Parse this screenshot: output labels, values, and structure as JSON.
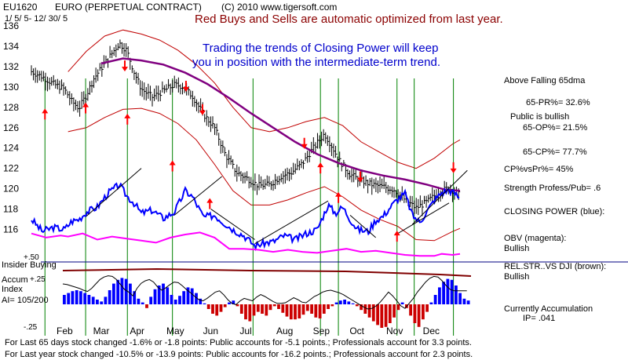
{
  "header": {
    "symbol": "EU1620",
    "name": "EURO  (PERPETUAL CONTRACT)",
    "copyright": "(C) 2010 www.tigersoft.com",
    "date_range": "1/ 5/ 5- 12/ 30/ 5"
  },
  "annotations": {
    "red_note": "Red Buys and Sells are automatic optimized from last year.",
    "blue_note_line1": "Trading the trends of Closing Power will keep",
    "blue_note_line2": "you in position with the intermediate-term trend."
  },
  "side_panel": {
    "above_ma": "Above Falling 65dma",
    "pr": "65-PR%= 32.6%",
    "public": "Public is bullish",
    "op": "65-OP%= 21.5%",
    "cp": "65-CP%= 77.7%",
    "cpvspr": "CP%vsPr%=  45%",
    "strength": "Strength Profess/Pub= .6",
    "closing_power": "CLOSING POWER (blue):",
    "obv": "OBV (magenta):",
    "obv_state": "Bullish",
    "relstr": "REL.STR..VS DJI (brown):",
    "relstr_state": "Bullish",
    "accum": "Currently Accumulation",
    "ip": "IP=  .041"
  },
  "footer": {
    "line1": "For Last 65 days stock changed -1.6% or -1.8 points:  Public accounts for -5.1 points.;  Professionals account for   3.3 points.",
    "line2": "For Last year stock changed -10.5% or -13.9 points:  Public accounts for -16.2 points.;  Professionals account for   2.3 points."
  },
  "lower_panel": {
    "insider": "Insider Buying",
    "plus50": "+.50",
    "accum": "Accum",
    "index": "Index",
    "ai": "AI= 105/200",
    "plus25": "+.25",
    "minus25": "-.25"
  },
  "colors": {
    "price_bars": "#000000",
    "bands": "#c00000",
    "ma65": "#800080",
    "closing_power": "#0000ff",
    "obv": "#ff00ff",
    "insider_line": "#000080",
    "signals": "#008000",
    "accum_pos": "#0000ff",
    "accum_neg": "#cc0000",
    "red_note": "#8b0000",
    "blue_note": "#0000cc"
  },
  "chart_data": {
    "type": "line",
    "x_ticks": [
      "Feb",
      "Mar",
      "Apr",
      "May",
      "Jun",
      "Jul",
      "Aug",
      "Sep",
      "Oct",
      "Nov",
      "Dec"
    ],
    "y_ticks": [
      116,
      118,
      120,
      122,
      124,
      126,
      128,
      130,
      132,
      134,
      136
    ],
    "ylim": [
      114.5,
      137
    ],
    "x_range": [
      0,
      12
    ],
    "price": [
      [
        0.0,
        131.5
      ],
      [
        0.3,
        131.0
      ],
      [
        0.6,
        130.3
      ],
      [
        0.9,
        129.8
      ],
      [
        1.1,
        128.6
      ],
      [
        1.3,
        127.9
      ],
      [
        1.5,
        129.2
      ],
      [
        1.7,
        130.8
      ],
      [
        2.0,
        132.3
      ],
      [
        2.2,
        133.3
      ],
      [
        2.4,
        134.3
      ],
      [
        2.6,
        133.6
      ],
      [
        2.8,
        131.5
      ],
      [
        3.0,
        129.8
      ],
      [
        3.3,
        129.0
      ],
      [
        3.6,
        129.6
      ],
      [
        3.9,
        130.2
      ],
      [
        4.1,
        130.1
      ],
      [
        4.4,
        129.1
      ],
      [
        4.7,
        127.3
      ],
      [
        5.0,
        126.0
      ],
      [
        5.3,
        123.3
      ],
      [
        5.6,
        121.6
      ],
      [
        5.9,
        121.0
      ],
      [
        6.2,
        120.3
      ],
      [
        6.5,
        120.4
      ],
      [
        6.8,
        121.2
      ],
      [
        7.1,
        121.6
      ],
      [
        7.4,
        122.5
      ],
      [
        7.7,
        124.0
      ],
      [
        8.0,
        125.4
      ],
      [
        8.2,
        124.2
      ],
      [
        8.4,
        122.8
      ],
      [
        8.7,
        121.4
      ],
      [
        9.0,
        120.8
      ],
      [
        9.3,
        120.4
      ],
      [
        9.6,
        120.2
      ],
      [
        9.9,
        119.9
      ],
      [
        10.2,
        118.9
      ],
      [
        10.5,
        118.1
      ],
      [
        10.8,
        118.7
      ],
      [
        11.1,
        119.6
      ],
      [
        11.4,
        120.1
      ],
      [
        11.7,
        119.3
      ]
    ],
    "ma65": [
      [
        1.9,
        132.3
      ],
      [
        2.5,
        132.8
      ],
      [
        3.0,
        132.6
      ],
      [
        3.6,
        132.2
      ],
      [
        4.2,
        131.4
      ],
      [
        4.8,
        130.3
      ],
      [
        5.4,
        128.9
      ],
      [
        6.0,
        127.4
      ],
      [
        6.6,
        126.0
      ],
      [
        7.2,
        124.6
      ],
      [
        7.8,
        123.4
      ],
      [
        8.4,
        122.5
      ],
      [
        9.0,
        121.8
      ],
      [
        9.6,
        121.3
      ],
      [
        10.2,
        120.9
      ],
      [
        10.8,
        120.4
      ],
      [
        11.3,
        119.9
      ],
      [
        11.7,
        119.8
      ]
    ],
    "band_upper": [
      [
        1.0,
        131.5
      ],
      [
        1.5,
        133.5
      ],
      [
        2.0,
        135.0
      ],
      [
        2.5,
        135.6
      ],
      [
        3.0,
        135.2
      ],
      [
        3.5,
        134.6
      ],
      [
        4.0,
        133.6
      ],
      [
        4.5,
        132.2
      ],
      [
        5.0,
        130.4
      ],
      [
        5.5,
        128.0
      ],
      [
        6.0,
        126.0
      ],
      [
        6.5,
        125.6
      ],
      [
        7.0,
        126.0
      ],
      [
        7.5,
        126.6
      ],
      [
        8.0,
        127.0
      ],
      [
        8.5,
        126.2
      ],
      [
        9.0,
        124.6
      ],
      [
        9.5,
        123.6
      ],
      [
        10.0,
        122.6
      ],
      [
        10.5,
        122.0
      ],
      [
        11.0,
        123.0
      ],
      [
        11.5,
        124.4
      ],
      [
        11.7,
        124.8
      ]
    ],
    "band_lower": [
      [
        1.0,
        125.6
      ],
      [
        1.5,
        126.0
      ],
      [
        2.0,
        127.0
      ],
      [
        2.5,
        127.8
      ],
      [
        3.0,
        127.9
      ],
      [
        3.5,
        127.4
      ],
      [
        4.0,
        126.4
      ],
      [
        4.5,
        124.8
      ],
      [
        5.0,
        122.4
      ],
      [
        5.5,
        119.8
      ],
      [
        6.0,
        118.4
      ],
      [
        6.5,
        118.4
      ],
      [
        7.0,
        118.9
      ],
      [
        7.5,
        119.6
      ],
      [
        8.0,
        120.2
      ],
      [
        8.5,
        119.2
      ],
      [
        9.0,
        117.9
      ],
      [
        9.5,
        117.0
      ],
      [
        10.0,
        116.3
      ],
      [
        10.5,
        115.0
      ],
      [
        11.0,
        114.9
      ],
      [
        11.5,
        115.8
      ],
      [
        11.7,
        116.1
      ]
    ],
    "closing_power": [
      [
        0.0,
        117.0
      ],
      [
        0.3,
        115.8
      ],
      [
        0.6,
        116.2
      ],
      [
        0.9,
        116.0
      ],
      [
        1.1,
        116.8
      ],
      [
        1.3,
        117.0
      ],
      [
        1.5,
        117.7
      ],
      [
        1.8,
        118.2
      ],
      [
        2.1,
        119.6
      ],
      [
        2.4,
        120.4
      ],
      [
        2.6,
        119.3
      ],
      [
        2.8,
        118.6
      ],
      [
        3.0,
        117.6
      ],
      [
        3.3,
        117.9
      ],
      [
        3.6,
        117.1
      ],
      [
        3.9,
        117.7
      ],
      [
        4.2,
        119.8
      ],
      [
        4.4,
        119.2
      ],
      [
        4.7,
        117.2
      ],
      [
        5.0,
        117.4
      ],
      [
        5.2,
        116.8
      ],
      [
        5.5,
        116.0
      ],
      [
        5.8,
        115.4
      ],
      [
        6.1,
        114.4
      ],
      [
        6.4,
        114.7
      ],
      [
        6.6,
        114.8
      ],
      [
        6.9,
        115.4
      ],
      [
        7.2,
        115.0
      ],
      [
        7.5,
        115.6
      ],
      [
        7.8,
        116.0
      ],
      [
        8.1,
        118.4
      ],
      [
        8.3,
        117.6
      ],
      [
        8.5,
        118.2
      ],
      [
        8.7,
        117.0
      ],
      [
        8.9,
        116.0
      ],
      [
        9.2,
        115.8
      ],
      [
        9.4,
        116.9
      ],
      [
        9.6,
        117.3
      ],
      [
        9.8,
        118.2
      ],
      [
        10.0,
        119.0
      ],
      [
        10.2,
        119.5
      ],
      [
        10.4,
        117.4
      ],
      [
        10.6,
        116.7
      ],
      [
        10.8,
        117.8
      ],
      [
        11.0,
        118.9
      ],
      [
        11.2,
        119.6
      ],
      [
        11.4,
        119.9
      ],
      [
        11.6,
        119.4
      ],
      [
        11.7,
        119.0
      ]
    ],
    "obv": [
      [
        0.0,
        115.6
      ],
      [
        0.4,
        115.2
      ],
      [
        0.8,
        115.4
      ],
      [
        1.0,
        115.3
      ],
      [
        1.4,
        115.6
      ],
      [
        1.8,
        115.0
      ],
      [
        2.2,
        115.3
      ],
      [
        2.6,
        115.1
      ],
      [
        3.0,
        114.9
      ],
      [
        3.4,
        114.7
      ],
      [
        3.8,
        115.2
      ],
      [
        4.2,
        115.5
      ],
      [
        4.6,
        115.7
      ],
      [
        5.0,
        115.2
      ],
      [
        5.4,
        114.1
      ],
      [
        5.8,
        114.1
      ],
      [
        6.2,
        114.0
      ],
      [
        6.6,
        113.8
      ],
      [
        7.0,
        114.0
      ],
      [
        7.4,
        113.8
      ],
      [
        7.8,
        113.7
      ],
      [
        8.2,
        113.9
      ],
      [
        8.6,
        114.1
      ],
      [
        9.0,
        113.8
      ],
      [
        9.4,
        113.9
      ],
      [
        9.8,
        113.7
      ],
      [
        10.2,
        113.5
      ],
      [
        10.6,
        113.4
      ],
      [
        11.0,
        113.4
      ],
      [
        11.2,
        113.6
      ],
      [
        11.5,
        113.5
      ],
      [
        11.7,
        113.6
      ]
    ],
    "signal_lines_x": [
      0.37,
      1.48,
      2.62,
      3.85,
      6.05,
      7.89,
      8.38,
      9.98,
      10.45,
      11.52
    ],
    "buy_signals": [
      {
        "x": 0.37,
        "y": 126.8
      },
      {
        "x": 1.48,
        "y": 127.4
      },
      {
        "x": 2.62,
        "y": 126.3
      },
      {
        "x": 3.85,
        "y": 121.7
      },
      {
        "x": 4.87,
        "y": 118.0
      },
      {
        "x": 7.89,
        "y": 121.5
      },
      {
        "x": 8.38,
        "y": 118.6
      },
      {
        "x": 9.98,
        "y": 114.8
      }
    ],
    "sell_signals": [
      {
        "x": 2.55,
        "y": 132.6
      },
      {
        "x": 4.22,
        "y": 130.6
      },
      {
        "x": 4.67,
        "y": 128.3
      },
      {
        "x": 7.45,
        "y": 125.0
      },
      {
        "x": 8.98,
        "y": 121.7
      },
      {
        "x": 11.52,
        "y": 122.6
      }
    ],
    "accum_index": [
      0.1,
      0.12,
      0.14,
      0.15,
      0.14,
      0.12,
      0.1,
      0.08,
      0.05,
      0.03,
      0.08,
      0.15,
      0.22,
      0.26,
      0.28,
      0.27,
      0.22,
      0.14,
      0.06,
      0.02,
      -0.04,
      0.08,
      0.16,
      0.2,
      0.22,
      0.18,
      0.1,
      0.05,
      0.09,
      0.14,
      0.18,
      0.17,
      0.12,
      0.06,
      0.01,
      -0.05,
      -0.1,
      -0.12,
      -0.08,
      -0.03,
      0.02,
      0.04,
      -0.02,
      -0.1,
      -0.16,
      -0.18,
      -0.12,
      -0.08,
      -0.1,
      -0.12,
      -0.06,
      -0.02,
      -0.05,
      -0.09,
      -0.13,
      -0.16,
      -0.16,
      -0.15,
      -0.11,
      -0.07,
      -0.1,
      -0.14,
      -0.15,
      -0.1,
      -0.05,
      -0.02,
      0.02,
      0.04,
      0.05,
      0.03,
      0.01,
      -0.02,
      -0.06,
      -0.1,
      -0.14,
      -0.18,
      -0.22,
      -0.25,
      -0.24,
      -0.2,
      -0.14,
      -0.06,
      0.02,
      -0.04,
      -0.12,
      -0.2,
      -0.24,
      -0.16,
      -0.08,
      0.02,
      0.1,
      0.18,
      0.24,
      0.27,
      0.26,
      0.2,
      0.12,
      0.06,
      0.04
    ]
  }
}
